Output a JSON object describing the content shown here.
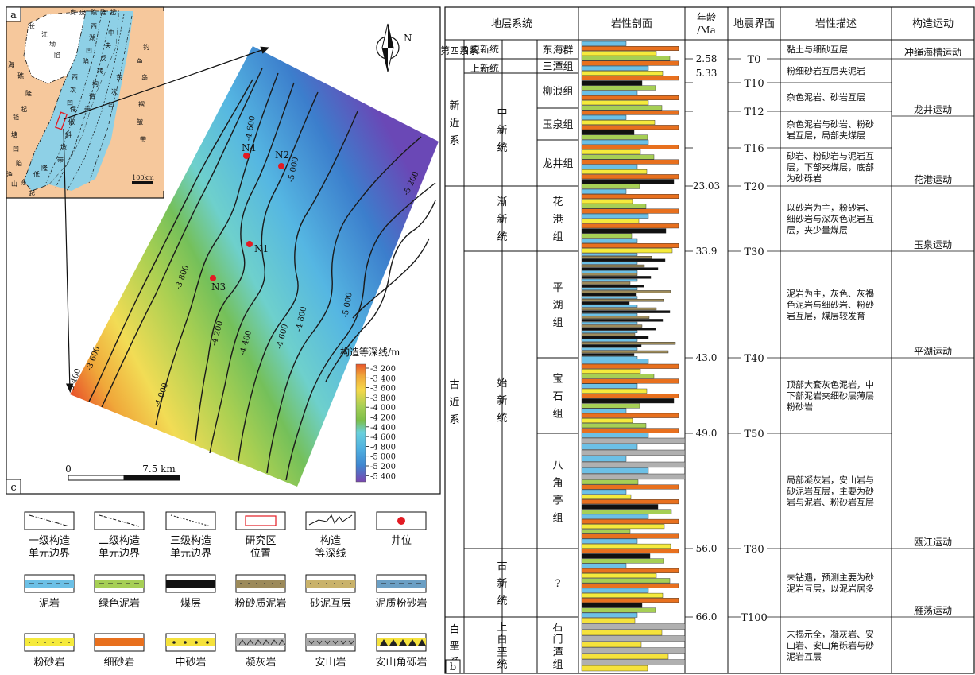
{
  "panels": {
    "a": "a",
    "b": "b",
    "c": "c"
  },
  "north": "N",
  "inset": {
    "labels": [
      "虎",
      "皮",
      "礁",
      "隆",
      "起",
      "长",
      "江",
      "坳",
      "陷",
      "海",
      "礁",
      "隆",
      "起",
      "钱",
      "塘",
      "凹",
      "陷",
      "渔",
      "山",
      "东",
      "低",
      "隆",
      "起",
      "钓",
      "鱼",
      "岛",
      "褶",
      "皱",
      "带",
      "西",
      "湖",
      "凹",
      "陷",
      "中",
      "央",
      "反",
      "转",
      "构",
      "造",
      "带",
      "保",
      "俶",
      "斜",
      "坡",
      "带",
      "西",
      "次",
      "凹",
      "东",
      "次",
      "凹"
    ],
    "scale_label": "100km"
  },
  "map": {
    "wells": [
      "N1",
      "N2",
      "N3",
      "N4"
    ],
    "contour_labels": [
      "-3 400",
      "-3 600",
      "-3 800",
      "-4 000",
      "-4 200",
      "-4 400",
      "-4 600",
      "-4 600",
      "-4 800",
      "-5 000",
      "-5 000",
      "-5 200"
    ],
    "legend_title": "构造等深线/m",
    "legend_values": [
      "-3 200",
      "-3 400",
      "-3 600",
      "-3 800",
      "-4 000",
      "-4 200",
      "-4 400",
      "-4 600",
      "-4 800",
      "-5 000",
      "-5 200",
      "-5 400"
    ],
    "legend_colors": [
      "#e8552a",
      "#f0a83a",
      "#f5d84a",
      "#d8e060",
      "#a6cf55",
      "#7cbf4a",
      "#6fc7a0",
      "#6ad0dc",
      "#4fb0e0",
      "#3f86d0",
      "#4a5ec0",
      "#7a46b0"
    ],
    "scale_zero": "0",
    "scale_value": "7.5 km"
  },
  "legend": [
    {
      "label1": "一级构造",
      "label2": "单元边界",
      "type": "line1"
    },
    {
      "label1": "二级构造",
      "label2": "单元边界",
      "type": "line2"
    },
    {
      "label1": "三级构造",
      "label2": "单元边界",
      "type": "line3"
    },
    {
      "label1": "研究区",
      "label2": "位置",
      "type": "rect"
    },
    {
      "label1": "构造",
      "label2": "等深线",
      "type": "contour"
    },
    {
      "label1": "井位",
      "label2": "",
      "type": "dot"
    },
    {
      "label1": "泥岩",
      "label2": "",
      "type": "mudstone",
      "color": "#6cc0e6"
    },
    {
      "label1": "绿色泥岩",
      "label2": "",
      "type": "greenmud",
      "color": "#a6cf55"
    },
    {
      "label1": "煤层",
      "label2": "",
      "type": "coal",
      "color": "#111111"
    },
    {
      "label1": "粉砂质泥岩",
      "label2": "",
      "type": "siltymud",
      "color": "#9c8a5a"
    },
    {
      "label1": "砂泥互层",
      "label2": "",
      "type": "sandmud",
      "color": "#c9b26a"
    },
    {
      "label1": "泥质粉砂岩",
      "label2": "",
      "type": "mudsilt",
      "color": "#6b9fc4"
    },
    {
      "label1": "粉砂岩",
      "label2": "",
      "type": "siltstone",
      "color": "#f5ea3c"
    },
    {
      "label1": "细砂岩",
      "label2": "",
      "type": "finesand",
      "color": "#e8701e"
    },
    {
      "label1": "中砂岩",
      "label2": "",
      "type": "medsand",
      "color": "#f5e23c"
    },
    {
      "label1": "凝灰岩",
      "label2": "",
      "type": "tuff",
      "color": "#b0b0b0"
    },
    {
      "label1": "安山岩",
      "label2": "",
      "type": "andesite",
      "color": "#a8a8a8"
    },
    {
      "label1": "安山角砾岩",
      "label2": "",
      "type": "breccia",
      "color": "#f5e23c"
    }
  ],
  "table": {
    "headers": {
      "strat": "地层系统",
      "litho": "岩性剖面",
      "age1": "年龄",
      "age2": "/Ma",
      "seismic": "地震界面",
      "desc": "岩性描述",
      "tect": "构造运动"
    },
    "systems": [
      {
        "name": "第四系"
      },
      {
        "name": "新近系"
      },
      {
        "name": "古近系"
      },
      {
        "name": "白垩系"
      }
    ],
    "series": [
      {
        "name": "更新统"
      },
      {
        "name": "上新统"
      },
      {
        "name": "中新统"
      },
      {
        "name": "渐新统"
      },
      {
        "name": "始新统"
      },
      {
        "name": "古新统"
      },
      {
        "name": "上白垩统"
      }
    ],
    "formations": [
      "东海群",
      "三潭组",
      "柳浪组",
      "玉泉组",
      "龙井组",
      "花港组",
      "平湖组",
      "宝石组",
      "八角亭组",
      "?",
      "石门潭组"
    ],
    "ages": [
      "2.58",
      "5.33",
      "23.03",
      "33.9",
      "43.0",
      "49.0",
      "56.0",
      "66.0"
    ],
    "seismic": [
      "T0",
      "T10",
      "T12",
      "T16",
      "T20",
      "T30",
      "T40",
      "T50",
      "T80",
      "T100"
    ],
    "descriptions": [
      "黏土与细砂互层",
      "粉细砂岩互层夹泥岩",
      "杂色泥岩、砂岩互层",
      "杂色泥岩与砂岩、粉砂岩互层，局部夹煤层",
      "砂岩、粉砂岩与泥岩互层，下部夹煤层，底部为砂砾岩",
      "以砂岩为主，粉砂岩、细砂岩与深灰色泥岩互层，夹少量煤层",
      "泥岩为主，灰色、灰褐色泥岩与细砂岩、粉砂岩互层，煤层较发育",
      "顶部大套灰色泥岩，中下部泥岩夹细砂层薄层粉砂岩",
      "局部凝灰岩，安山岩与砂泥岩互层，主要为砂岩与泥岩、粉砂岩互层",
      "未钻遇，预测主要为砂泥岩互层，以泥岩居多",
      "未揭示全，凝灰岩、安山岩、安山角砾岩与砂泥岩互层"
    ],
    "tectonic": [
      "冲绳海槽运动",
      "龙井运动",
      "花港运动",
      "玉泉运动",
      "平湖运动",
      "瓯江运动",
      "雁荡运动"
    ]
  }
}
